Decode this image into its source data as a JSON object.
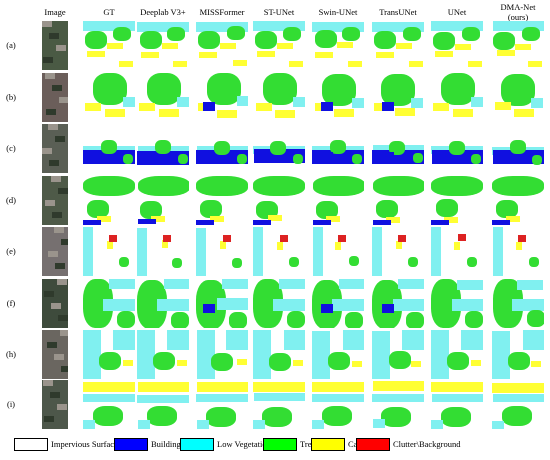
{
  "columns": [
    "Image",
    "GT",
    "Deeplab V3+",
    "MISSFormer",
    "ST-UNet",
    "Swin-UNet",
    "TransUNet",
    "UNet",
    "DMA-Net\n(ours)"
  ],
  "rows": [
    "(a)",
    "(b)",
    "(c)",
    "(d)",
    "(e)",
    "(f)",
    "(h)",
    "(i)"
  ],
  "legend": [
    {
      "label": "Impervious Surface",
      "color": "#ffffff"
    },
    {
      "label": "Building",
      "color": "#0000ff"
    },
    {
      "label": "Low Vegetation",
      "color": "#00ffff"
    },
    {
      "label": "Tree",
      "color": "#00ff00"
    },
    {
      "label": "Car",
      "color": "#ffff00"
    },
    {
      "label": "Clutter\\Background",
      "color": "#ff0000"
    }
  ],
  "colors": {
    "impervious": "#ffffff",
    "building": "#1010e0",
    "low_vegetation": "#80f0f0",
    "tree": "#33dd33",
    "car": "#ffff33",
    "clutter": "#dd2222"
  }
}
